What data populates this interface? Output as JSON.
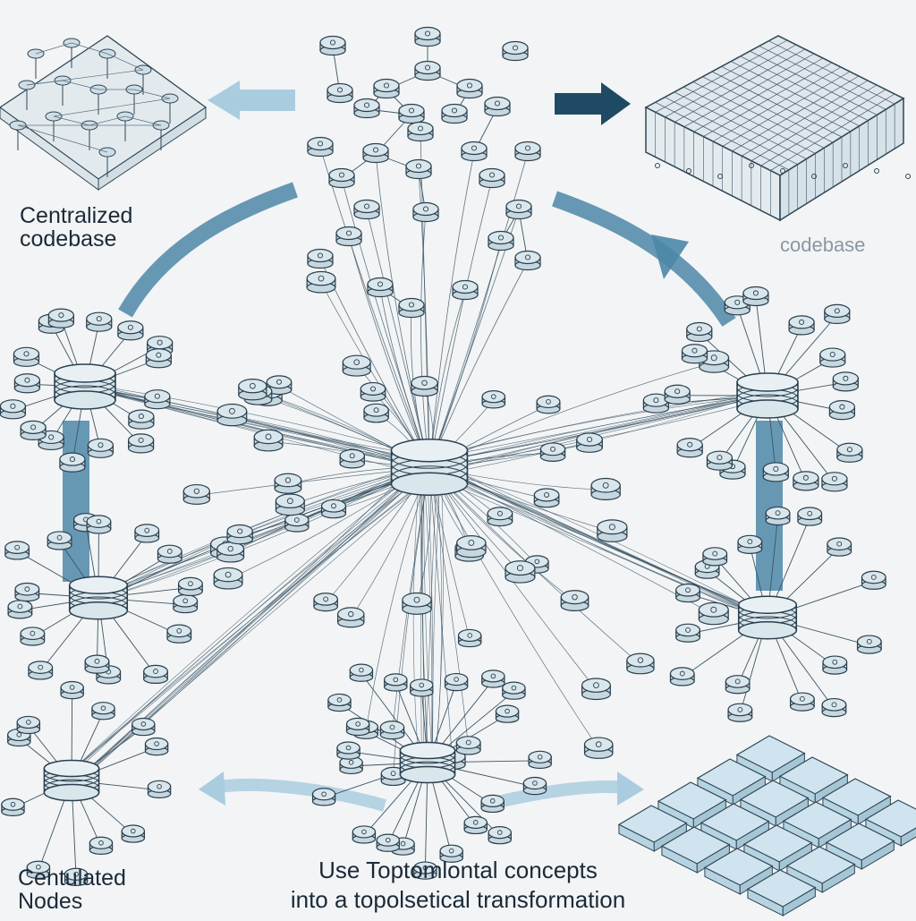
{
  "labels": {
    "centralized_title": [
      "Centralized",
      "codebase"
    ],
    "codebase": "codebase",
    "nodes_title": [
      "Centulated",
      "Nodes"
    ],
    "caption": [
      "Use Toptomlontal concepts",
      "into a topolsetical transformation"
    ]
  },
  "colors": {
    "background": "#f3f4f5",
    "arrow_blue": "#4c87a8",
    "arrow_light": "#a9ccdf",
    "arrow_dark": "#1f4a64",
    "node_fill": "#d9e6ec",
    "node_stroke": "#2a3f4e",
    "edge": "#3a5566",
    "tile": "#cfe4ee"
  },
  "icons": {
    "hub": "database-cylinder-icon",
    "node": "node-puck-icon",
    "grid_codebase": "wireframe-grid-block-icon",
    "tile_grid": "tile-grid-icon",
    "arrow": "flow-arrow-icon"
  }
}
